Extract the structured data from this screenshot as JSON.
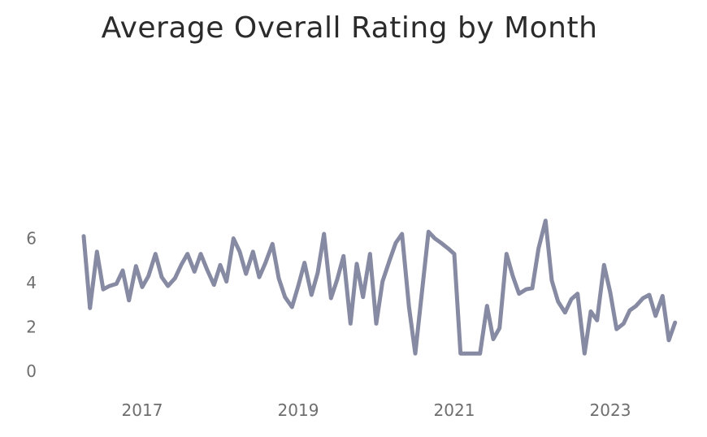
{
  "chart_data": {
    "type": "line",
    "title": "Average Overall Rating by Month",
    "xlabel": "",
    "ylabel": "",
    "ylim": [
      0,
      7
    ],
    "xlim": [
      2016.0,
      2024.0
    ],
    "y_ticks": [
      0,
      2,
      4,
      6
    ],
    "x_ticks": [
      2017,
      2019,
      2021,
      2023
    ],
    "series": [
      {
        "name": "Average Overall Rating",
        "color": "#878aa3",
        "x": [
          2016.25,
          2016.33,
          2016.42,
          2016.5,
          2016.58,
          2016.67,
          2016.75,
          2016.83,
          2016.92,
          2017.0,
          2017.08,
          2017.17,
          2017.25,
          2017.33,
          2017.42,
          2017.5,
          2017.58,
          2017.67,
          2017.75,
          2017.83,
          2017.92,
          2018.0,
          2018.08,
          2018.17,
          2018.25,
          2018.33,
          2018.42,
          2018.5,
          2018.58,
          2018.67,
          2018.75,
          2018.83,
          2018.92,
          2019.0,
          2019.08,
          2019.17,
          2019.25,
          2019.33,
          2019.42,
          2019.5,
          2019.58,
          2019.67,
          2019.75,
          2019.83,
          2019.92,
          2020.0,
          2020.08,
          2020.17,
          2020.25,
          2020.33,
          2020.42,
          2020.5,
          2020.67,
          2020.75,
          2020.83,
          2020.92,
          2021.0,
          2021.08,
          2021.17,
          2021.25,
          2021.33,
          2021.42,
          2021.5,
          2021.58,
          2021.67,
          2021.75,
          2021.83,
          2021.92,
          2022.0,
          2022.08,
          2022.17,
          2022.25,
          2022.33,
          2022.42,
          2022.5,
          2022.58,
          2022.67,
          2022.75,
          2022.83,
          2022.92,
          2023.0,
          2023.08,
          2023.17,
          2023.25,
          2023.33,
          2023.42,
          2023.5,
          2023.58,
          2023.67,
          2023.75,
          2023.83
        ],
        "values": [
          6.1,
          2.85,
          5.4,
          3.7,
          3.85,
          3.95,
          4.55,
          3.2,
          4.75,
          3.8,
          4.3,
          5.3,
          4.25,
          3.85,
          4.2,
          4.8,
          5.3,
          4.5,
          5.3,
          4.6,
          3.9,
          4.8,
          4.05,
          6.0,
          5.4,
          4.4,
          5.4,
          4.25,
          4.9,
          5.75,
          4.2,
          3.35,
          2.9,
          3.85,
          4.9,
          3.45,
          4.45,
          6.2,
          3.3,
          4.15,
          5.2,
          2.15,
          4.85,
          3.35,
          5.3,
          2.15,
          4.05,
          5.0,
          5.8,
          6.2,
          2.9,
          0.8,
          6.3,
          6.0,
          5.8,
          5.55,
          5.3,
          0.8,
          0.8,
          0.8,
          0.8,
          2.95,
          1.45,
          1.95,
          5.3,
          4.3,
          3.5,
          3.7,
          3.75,
          5.55,
          6.8,
          4.1,
          3.15,
          2.65,
          3.25,
          3.5,
          0.8,
          2.7,
          2.3,
          4.8,
          3.55,
          1.9,
          2.15,
          2.75,
          2.95,
          3.3,
          3.45,
          2.5,
          3.4,
          1.4,
          2.2
        ]
      }
    ]
  }
}
